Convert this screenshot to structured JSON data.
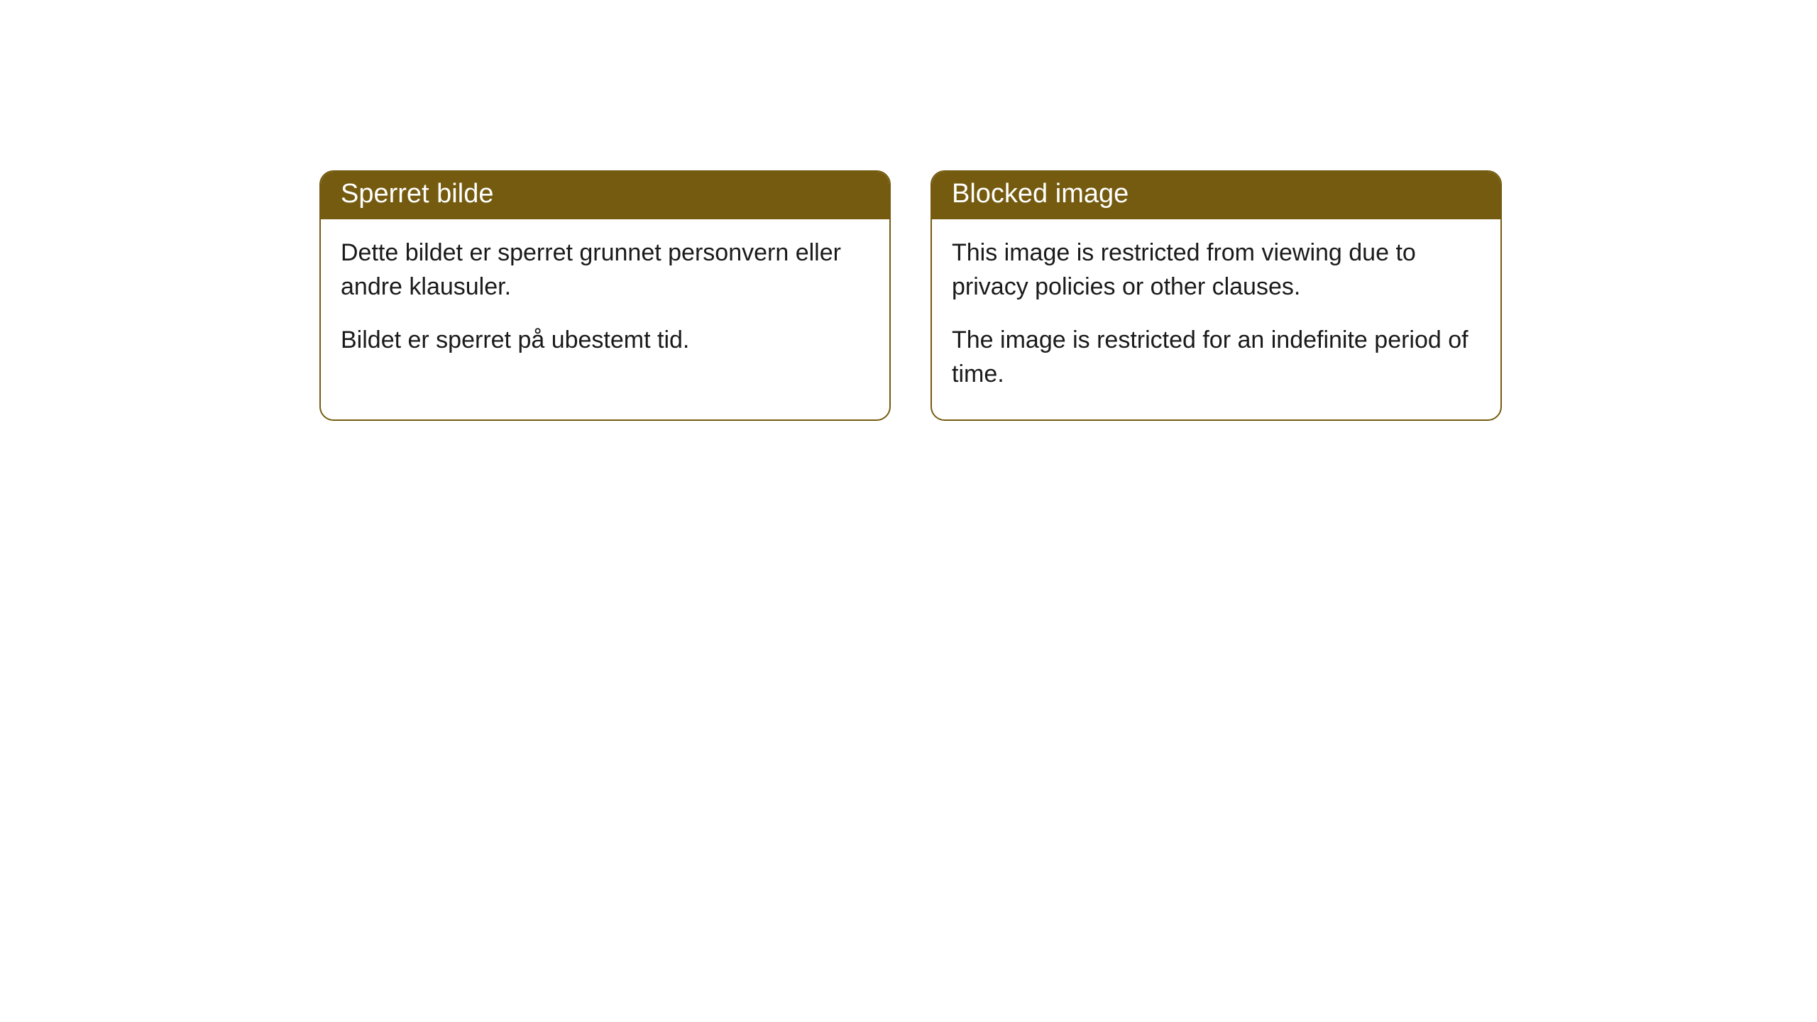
{
  "cards": [
    {
      "title": "Sperret bilde",
      "p1": "Dette bildet er sperret grunnet personvern eller andre klausuler.",
      "p2": "Bildet er sperret på ubestemt tid."
    },
    {
      "title": "Blocked image",
      "p1": "This image is restricted from viewing due to privacy policies or other clauses.",
      "p2": "The image is restricted for an indefinite period of time."
    }
  ],
  "style": {
    "header_bg": "#755b10",
    "header_text": "#ffffff",
    "border_color": "#755b10",
    "body_text": "#1a1a1a",
    "page_bg": "#ffffff",
    "border_radius": 20,
    "title_fontsize": 38,
    "body_fontsize": 34
  }
}
